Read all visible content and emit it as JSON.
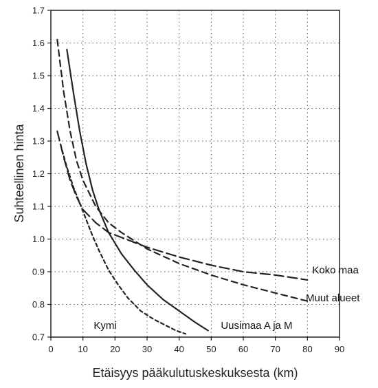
{
  "chart_data": {
    "type": "line",
    "title": "",
    "xlabel": "Etäisyys pääkulutuskeskuksesta (km)",
    "ylabel": "Suhteellinen hinta",
    "xlim": [
      0,
      90
    ],
    "ylim": [
      0.7,
      1.7
    ],
    "x_ticks": [
      "0",
      "10",
      "20",
      "30",
      "40",
      "50",
      "60",
      "70",
      "80",
      "90"
    ],
    "y_ticks": [
      "0.7",
      "0.8",
      "0.9",
      "1.0",
      "1.1",
      "1.2",
      "1.3",
      "1.4",
      "1.5",
      "1.6",
      "1.7"
    ],
    "grid": true,
    "series": [
      {
        "name": "Koko maa",
        "line_style": "long-dash",
        "x": [
          2,
          4,
          6,
          8,
          10,
          14,
          18,
          22,
          26,
          30,
          40,
          50,
          60,
          70,
          80
        ],
        "y": [
          1.33,
          1.25,
          1.18,
          1.13,
          1.09,
          1.05,
          1.02,
          1.005,
          0.99,
          0.975,
          0.945,
          0.92,
          0.9,
          0.89,
          0.875
        ]
      },
      {
        "name": "Muut alueet",
        "line_style": "dash",
        "x": [
          2,
          4,
          6,
          8,
          10,
          14,
          18,
          22,
          26,
          30,
          40,
          50,
          60,
          70,
          80
        ],
        "y": [
          1.61,
          1.45,
          1.33,
          1.24,
          1.18,
          1.1,
          1.05,
          1.02,
          0.995,
          0.97,
          0.925,
          0.89,
          0.86,
          0.835,
          0.81
        ]
      },
      {
        "name": "Uusimaa A ja M",
        "line_style": "solid",
        "x": [
          5,
          7,
          9,
          11,
          13,
          15,
          18,
          22,
          26,
          30,
          35,
          40,
          45,
          49
        ],
        "y": [
          1.58,
          1.45,
          1.33,
          1.23,
          1.15,
          1.09,
          1.02,
          0.955,
          0.905,
          0.86,
          0.815,
          0.78,
          0.745,
          0.72
        ]
      },
      {
        "name": "Kymi",
        "line_style": "short-dash",
        "x": [
          3,
          5,
          7,
          9,
          11,
          13,
          15,
          18,
          21,
          24,
          28,
          32,
          36,
          39,
          42
        ],
        "y": [
          1.29,
          1.22,
          1.16,
          1.11,
          1.06,
          1.01,
          0.965,
          0.905,
          0.86,
          0.82,
          0.78,
          0.755,
          0.735,
          0.72,
          0.71
        ]
      }
    ]
  }
}
